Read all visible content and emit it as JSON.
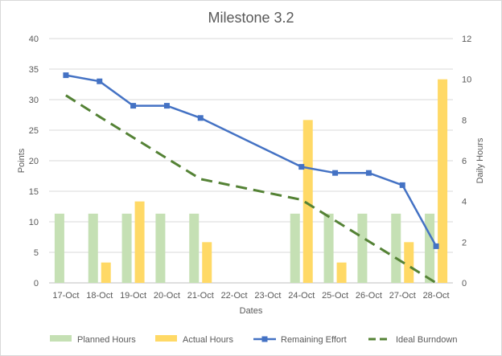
{
  "chart_data": {
    "type": "bar",
    "title": "Milestone 3.2",
    "xlabel": "Dates",
    "ylabel": "Points",
    "y2label": "Daily Hours",
    "ylim": [
      0,
      40
    ],
    "y2lim": [
      0,
      12
    ],
    "yticks": [
      0,
      5,
      10,
      15,
      20,
      25,
      30,
      35,
      40
    ],
    "y2ticks": [
      0,
      2,
      4,
      6,
      8,
      10,
      12
    ],
    "grid": true,
    "legend": "bottom",
    "categories": [
      "17-Oct",
      "18-Oct",
      "19-Oct",
      "20-Oct",
      "21-Oct",
      "22-Oct",
      "23-Oct",
      "24-Oct",
      "25-Oct",
      "26-Oct",
      "27-Oct",
      "28-Oct"
    ],
    "series": [
      {
        "name": "Planned Hours",
        "kind": "bar",
        "axis": "right",
        "color": "#c5e0b4",
        "values": [
          3.4,
          3.4,
          3.4,
          3.4,
          3.4,
          null,
          null,
          3.4,
          3.4,
          3.4,
          3.4,
          3.4
        ]
      },
      {
        "name": "Actual Hours",
        "kind": "bar",
        "axis": "right",
        "color": "#ffd966",
        "values": [
          null,
          1,
          4,
          null,
          2,
          null,
          null,
          8,
          1,
          null,
          2,
          10
        ]
      },
      {
        "name": "Remaining Effort",
        "kind": "line",
        "axis": "left",
        "color": "#4472c4",
        "marker": "square",
        "values": [
          34,
          33,
          29,
          29,
          27,
          null,
          null,
          19,
          18,
          18,
          16,
          6
        ]
      },
      {
        "name": "Ideal Burndown",
        "kind": "dashed-line",
        "axis": "left",
        "color": "#548235",
        "values": [
          30.7,
          27.2,
          23.8,
          20.4,
          17,
          null,
          null,
          13.6,
          10.2,
          6.8,
          3.4,
          0
        ]
      }
    ]
  }
}
